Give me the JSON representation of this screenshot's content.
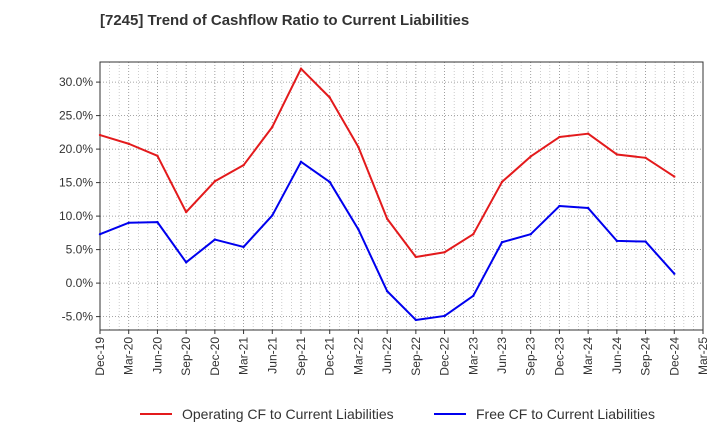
{
  "chart_data": {
    "type": "line",
    "title": "[7245]  Trend of Cashflow Ratio to Current Liabilities",
    "xlabel": "",
    "ylabel": "",
    "x": [
      "Dec-19",
      "Mar-20",
      "Jun-20",
      "Sep-20",
      "Dec-20",
      "Mar-21",
      "Jun-21",
      "Sep-21",
      "Dec-21",
      "Mar-22",
      "Jun-22",
      "Sep-22",
      "Dec-22",
      "Mar-23",
      "Jun-23",
      "Sep-23",
      "Dec-23",
      "Mar-24",
      "Jun-24",
      "Sep-24",
      "Dec-24",
      "Mar-25"
    ],
    "ylim": [
      -7.0,
      33.0
    ],
    "yticks": [
      -5.0,
      0.0,
      5.0,
      10.0,
      15.0,
      20.0,
      25.0,
      30.0
    ],
    "ytick_labels": [
      "-5.0%",
      "0.0%",
      "5.0%",
      "10.0%",
      "15.0%",
      "20.0%",
      "25.0%",
      "30.0%"
    ],
    "grid": true,
    "legend_position": "bottom",
    "series": [
      {
        "name": "Operating CF to Current Liabilities",
        "color": "#e31a1c",
        "values": [
          22.1,
          20.8,
          19.0,
          10.6,
          15.2,
          17.6,
          23.3,
          32.0,
          27.7,
          20.3,
          9.6,
          3.9,
          4.6,
          7.3,
          15.1,
          18.9,
          21.8,
          22.3,
          19.2,
          18.7,
          15.9,
          null
        ]
      },
      {
        "name": "Free CF to Current Liabilities",
        "color": "#0000ee",
        "values": [
          7.3,
          9.0,
          9.1,
          3.1,
          6.5,
          5.4,
          10.1,
          18.1,
          15.1,
          8.0,
          -1.2,
          -5.5,
          -4.9,
          -1.9,
          6.1,
          7.3,
          11.5,
          11.2,
          6.3,
          6.2,
          1.4,
          null
        ]
      }
    ]
  }
}
